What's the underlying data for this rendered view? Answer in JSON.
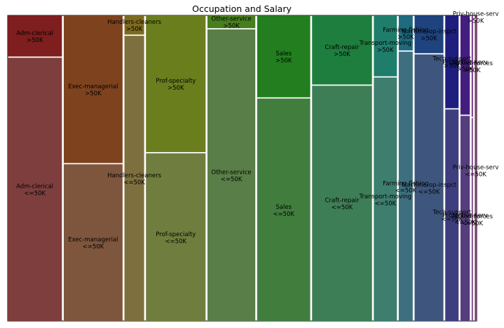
{
  "chart_data": {
    "type": "mosaic",
    "title": "Occupation and Salary",
    "xlabel": "",
    "ylabel": "",
    "gap": {
      "x": 0.004,
      "y": 0.004
    },
    "ylevels": [
      ">50K",
      "<=50K"
    ],
    "categories": [
      {
        "name": "Adm-clerical",
        "width": 0.115,
        "split": 0.135,
        "colors": [
          "#7e1e1e",
          "#7e3e3e"
        ]
      },
      {
        "name": "Exec-managerial",
        "width": 0.1248,
        "split": 0.485,
        "colors": [
          "#7e431e",
          "#7e563e"
        ]
      },
      {
        "name": "Handlers-cleaners",
        "width": 0.0417,
        "split": 0.063,
        "colors": [
          "#7e6a1e",
          "#7e6f3e"
        ]
      },
      {
        "name": "Prof-specialty",
        "width": 0.1265,
        "split": 0.449,
        "colors": [
          "#6b7e1e",
          "#6f7e3e"
        ]
      },
      {
        "name": "Other-service",
        "width": 0.1015,
        "split": 0.042,
        "colors": [
          "#477e1e",
          "#5a7e47"
        ]
      },
      {
        "name": "Sales",
        "width": 0.1126,
        "split": 0.269,
        "colors": [
          "#227e1e",
          "#417e3e"
        ]
      },
      {
        "name": "Craft-repair",
        "width": 0.1271,
        "split": 0.227,
        "colors": [
          "#1e7e3e",
          "#3e7e56"
        ]
      },
      {
        "name": "Transport-moving",
        "width": 0.0489,
        "split": 0.2,
        "colors": [
          "#1e7e6b",
          "#3e7e6f"
        ]
      },
      {
        "name": "Farming-fishing",
        "width": 0.0296,
        "split": 0.115,
        "colors": [
          "#1e6a7e",
          "#3e6f7e"
        ]
      },
      {
        "name": "Machine-op-inspct",
        "width": 0.0611,
        "split": 0.124,
        "colors": [
          "#1e437e",
          "#3e567e"
        ]
      },
      {
        "name": "Tech-support",
        "width": 0.0283,
        "split": 0.305,
        "colors": [
          "#1e1e7e",
          "#3e3e7e"
        ]
      },
      {
        "name": "Protective-serv",
        "width": 0.0198,
        "split": 0.326,
        "colors": [
          "#431e7e",
          "#563e7e"
        ]
      },
      {
        "name": "Armed-Forces",
        "width": 0.0026,
        "split": 0.333,
        "colors": [
          "#6a1e7e",
          "#6f3e7e"
        ]
      },
      {
        "name": "Priv-house-serv",
        "width": 0.004,
        "split": 0.01,
        "colors": [
          "#7e1e6b",
          "#7e3e6f"
        ]
      }
    ]
  }
}
